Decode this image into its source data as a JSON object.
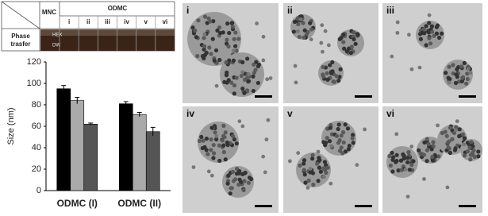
{
  "table": {
    "corner_label": "MNC",
    "group_label": "ODMC",
    "columns": [
      "i",
      "ii",
      "iii",
      "iv",
      "v",
      "vi"
    ],
    "row_label": "Phase trasfer",
    "phase_labels": [
      "HEX",
      "DW"
    ]
  },
  "panels": [
    "i",
    "ii",
    "iii",
    "iv",
    "v",
    "vi"
  ],
  "chart_data": {
    "type": "bar",
    "ylabel": "Size (nm)",
    "categories": [
      "ODMC (I)",
      "ODMC (II)"
    ],
    "series": [
      {
        "color": "#000000",
        "values": [
          95,
          81
        ],
        "errors": [
          3,
          2
        ]
      },
      {
        "color": "#aaaaaa",
        "values": [
          84,
          71
        ],
        "errors": [
          3,
          2
        ]
      },
      {
        "color": "#555555",
        "values": [
          62,
          55
        ],
        "errors": [
          1,
          4
        ]
      }
    ],
    "ylim": [
      0,
      120
    ],
    "yticks": [
      0,
      20,
      40,
      60,
      80,
      100,
      120
    ]
  }
}
